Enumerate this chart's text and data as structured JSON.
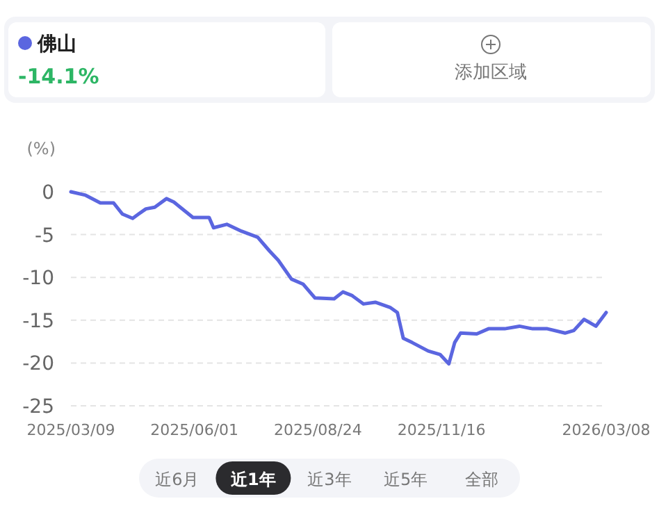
{
  "chart_data": {
    "type": "line",
    "ylabel": "(%)",
    "x": [
      "2025-03-09",
      "2025-03-19",
      "2025-03-29",
      "2025-04-07",
      "2025-04-13",
      "2025-04-20",
      "2025-04-24",
      "2025-04-29",
      "2025-05-05",
      "2025-05-13",
      "2025-05-18",
      "2025-05-31",
      "2025-06-11",
      "2025-06-14",
      "2025-06-23",
      "2025-07-03",
      "2025-07-14",
      "2025-07-22",
      "2025-07-28",
      "2025-08-06",
      "2025-08-14",
      "2025-08-22",
      "2025-09-04",
      "2025-09-10",
      "2025-09-16",
      "2025-09-24",
      "2025-10-02",
      "2025-10-12",
      "2025-10-17",
      "2025-10-21",
      "2025-10-27",
      "2025-11-07",
      "2025-11-15",
      "2025-11-21",
      "2025-11-25",
      "2025-11-29",
      "2025-12-10",
      "2025-12-18",
      "2025-12-29",
      "2026-01-08",
      "2026-01-17",
      "2026-01-27",
      "2026-02-08",
      "2026-02-14",
      "2026-02-21",
      "2026-03-01",
      "2026-03-08"
    ],
    "series": [
      {
        "name": "佛山",
        "color": "#5b66e0",
        "values": [
          0,
          -0.4,
          -1.3,
          -1.3,
          -2.6,
          -3.1,
          -2.6,
          -2.0,
          -1.8,
          -0.8,
          -1.2,
          -3.0,
          -3.0,
          -4.2,
          -3.8,
          -4.6,
          -5.3,
          -6.9,
          -8.0,
          -10.2,
          -10.8,
          -12.4,
          -12.5,
          -11.7,
          -12.1,
          -13.1,
          -12.9,
          -13.5,
          -14.1,
          -17.1,
          -17.6,
          -18.6,
          -19.0,
          -20.1,
          -17.6,
          -16.5,
          -16.6,
          -16.0,
          -16.0,
          -15.7,
          -16.0,
          -16.0,
          -16.5,
          -16.2,
          -14.9,
          -15.7,
          -14.1
        ]
      }
    ],
    "xlim": [
      "2025-03-09",
      "2026-03-08"
    ],
    "xticks": [
      {
        "value": "2025-03-09",
        "label": "2025/03/09"
      },
      {
        "value": "2025-06-01",
        "label": "2025/06/01"
      },
      {
        "value": "2025-08-24",
        "label": "2025/08/24"
      },
      {
        "value": "2025-11-16",
        "label": "2025/11/16"
      },
      {
        "value": "2026-03-08",
        "label": "2026/03/08"
      }
    ],
    "ylim": [
      -25,
      0
    ],
    "yticks": [
      0,
      -5,
      -10,
      -15,
      -20,
      -25
    ],
    "grid": "y",
    "legend": "top left",
    "marker": "none",
    "line_style": "solid",
    "annotations": [
      "-14.1%",
      "添加区域",
      "近6月",
      "近1年",
      "近3年",
      "近5年",
      "全部"
    ]
  }
}
